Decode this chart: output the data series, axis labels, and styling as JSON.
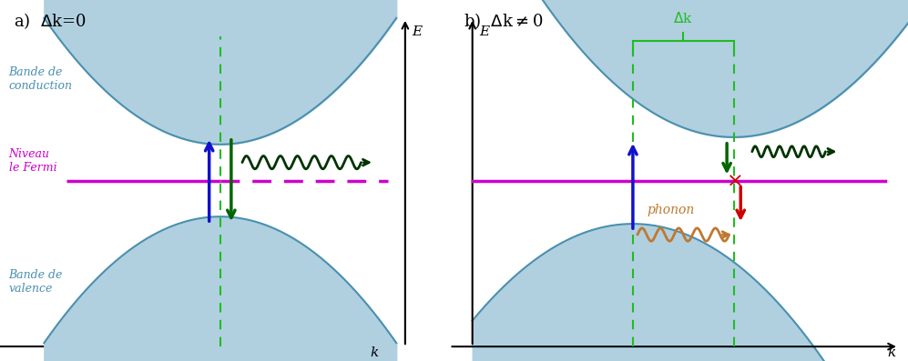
{
  "fig_width": 9.97,
  "fig_height": 3.97,
  "bg_color": "#ffffff",
  "band_color": "#b0d0e0",
  "band_edge_color": "#4a90b0",
  "fermi_color": "#cc00cc",
  "green_arrow_color": "#006600",
  "blue_arrow_color": "#1111cc",
  "red_arrow_color": "#cc0000",
  "phonon_color": "#c07830",
  "wavy_photon_color": "#003300",
  "dashed_green_color": "#22bb22",
  "title_a": "a)  $\\Delta$k=0",
  "title_b": "b)  $\\Delta$k$\\neq$0",
  "label_conduction": "Bande de\nconduction",
  "label_valence": "Bande de\nvalence",
  "label_fermi_a": "Niveau\nle Fermi",
  "label_k": "k",
  "label_E": "E",
  "label_delta_k": "$\\Delta$k",
  "label_phonon": "phonon"
}
